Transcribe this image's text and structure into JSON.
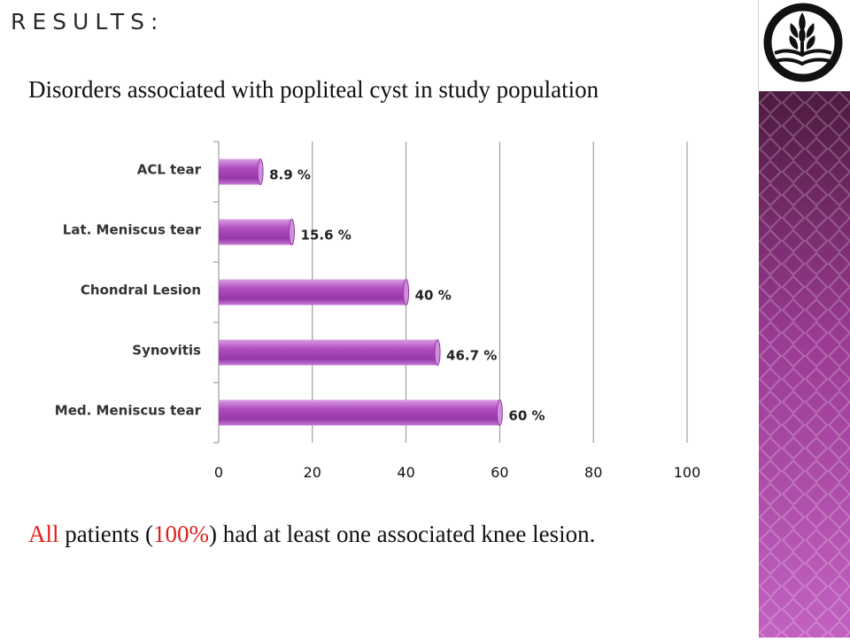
{
  "slide": {
    "heading": "RESULTS:",
    "subtitle": "Disorders associated with popliteal cyst in study population",
    "footnote": {
      "part1": "All",
      "part2": " patients (",
      "part3": "100%",
      "part4": ") had at least one associated knee lesion."
    },
    "accent_color": "#e0201b",
    "bar_color": "#b04ec0",
    "side_band_colors": [
      "#4e1a3f",
      "#9a3a92",
      "#c261c0"
    ]
  },
  "chart_data": {
    "type": "bar",
    "orientation": "horizontal",
    "categories": [
      "ACL tear",
      "Lat. Meniscus tear",
      "Chondral Lesion",
      "Synovitis",
      "Med. Meniscus tear"
    ],
    "values": [
      8.9,
      15.6,
      40,
      46.7,
      60
    ],
    "data_labels": [
      "8.9 %",
      "15.6 %",
      "40 %",
      "46.7 %",
      "60 %"
    ],
    "xlim": [
      0,
      100
    ],
    "x_ticks": [
      0,
      20,
      40,
      60,
      80,
      100
    ],
    "grid": true,
    "legend": "none",
    "title": "",
    "xlabel": "",
    "ylabel": ""
  }
}
